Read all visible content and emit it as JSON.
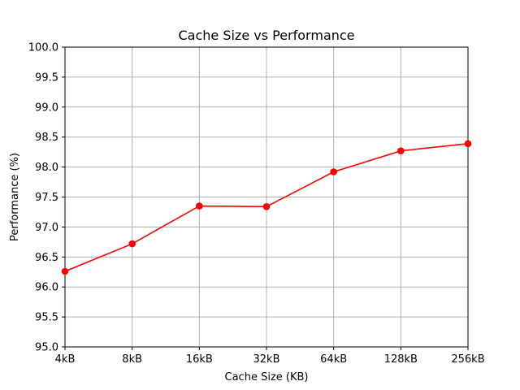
{
  "chart_data": {
    "type": "line",
    "title": "Cache Size vs Performance",
    "xlabel": "Cache Size (KB)",
    "ylabel": "Performance (%)",
    "categories": [
      "4kB",
      "8kB",
      "16kB",
      "32kB",
      "64kB",
      "128kB",
      "256kB"
    ],
    "series": [
      {
        "values": [
          96.26,
          96.72,
          97.35,
          97.34,
          97.92,
          98.27,
          98.39
        ],
        "color": "#ff0000",
        "marker": "circle"
      }
    ],
    "ylim": [
      95.0,
      100.0
    ],
    "yticks": [
      "95.0",
      "95.5",
      "96.0",
      "96.5",
      "97.0",
      "97.5",
      "98.0",
      "98.5",
      "99.0",
      "99.5",
      "100.0"
    ],
    "grid": true
  }
}
